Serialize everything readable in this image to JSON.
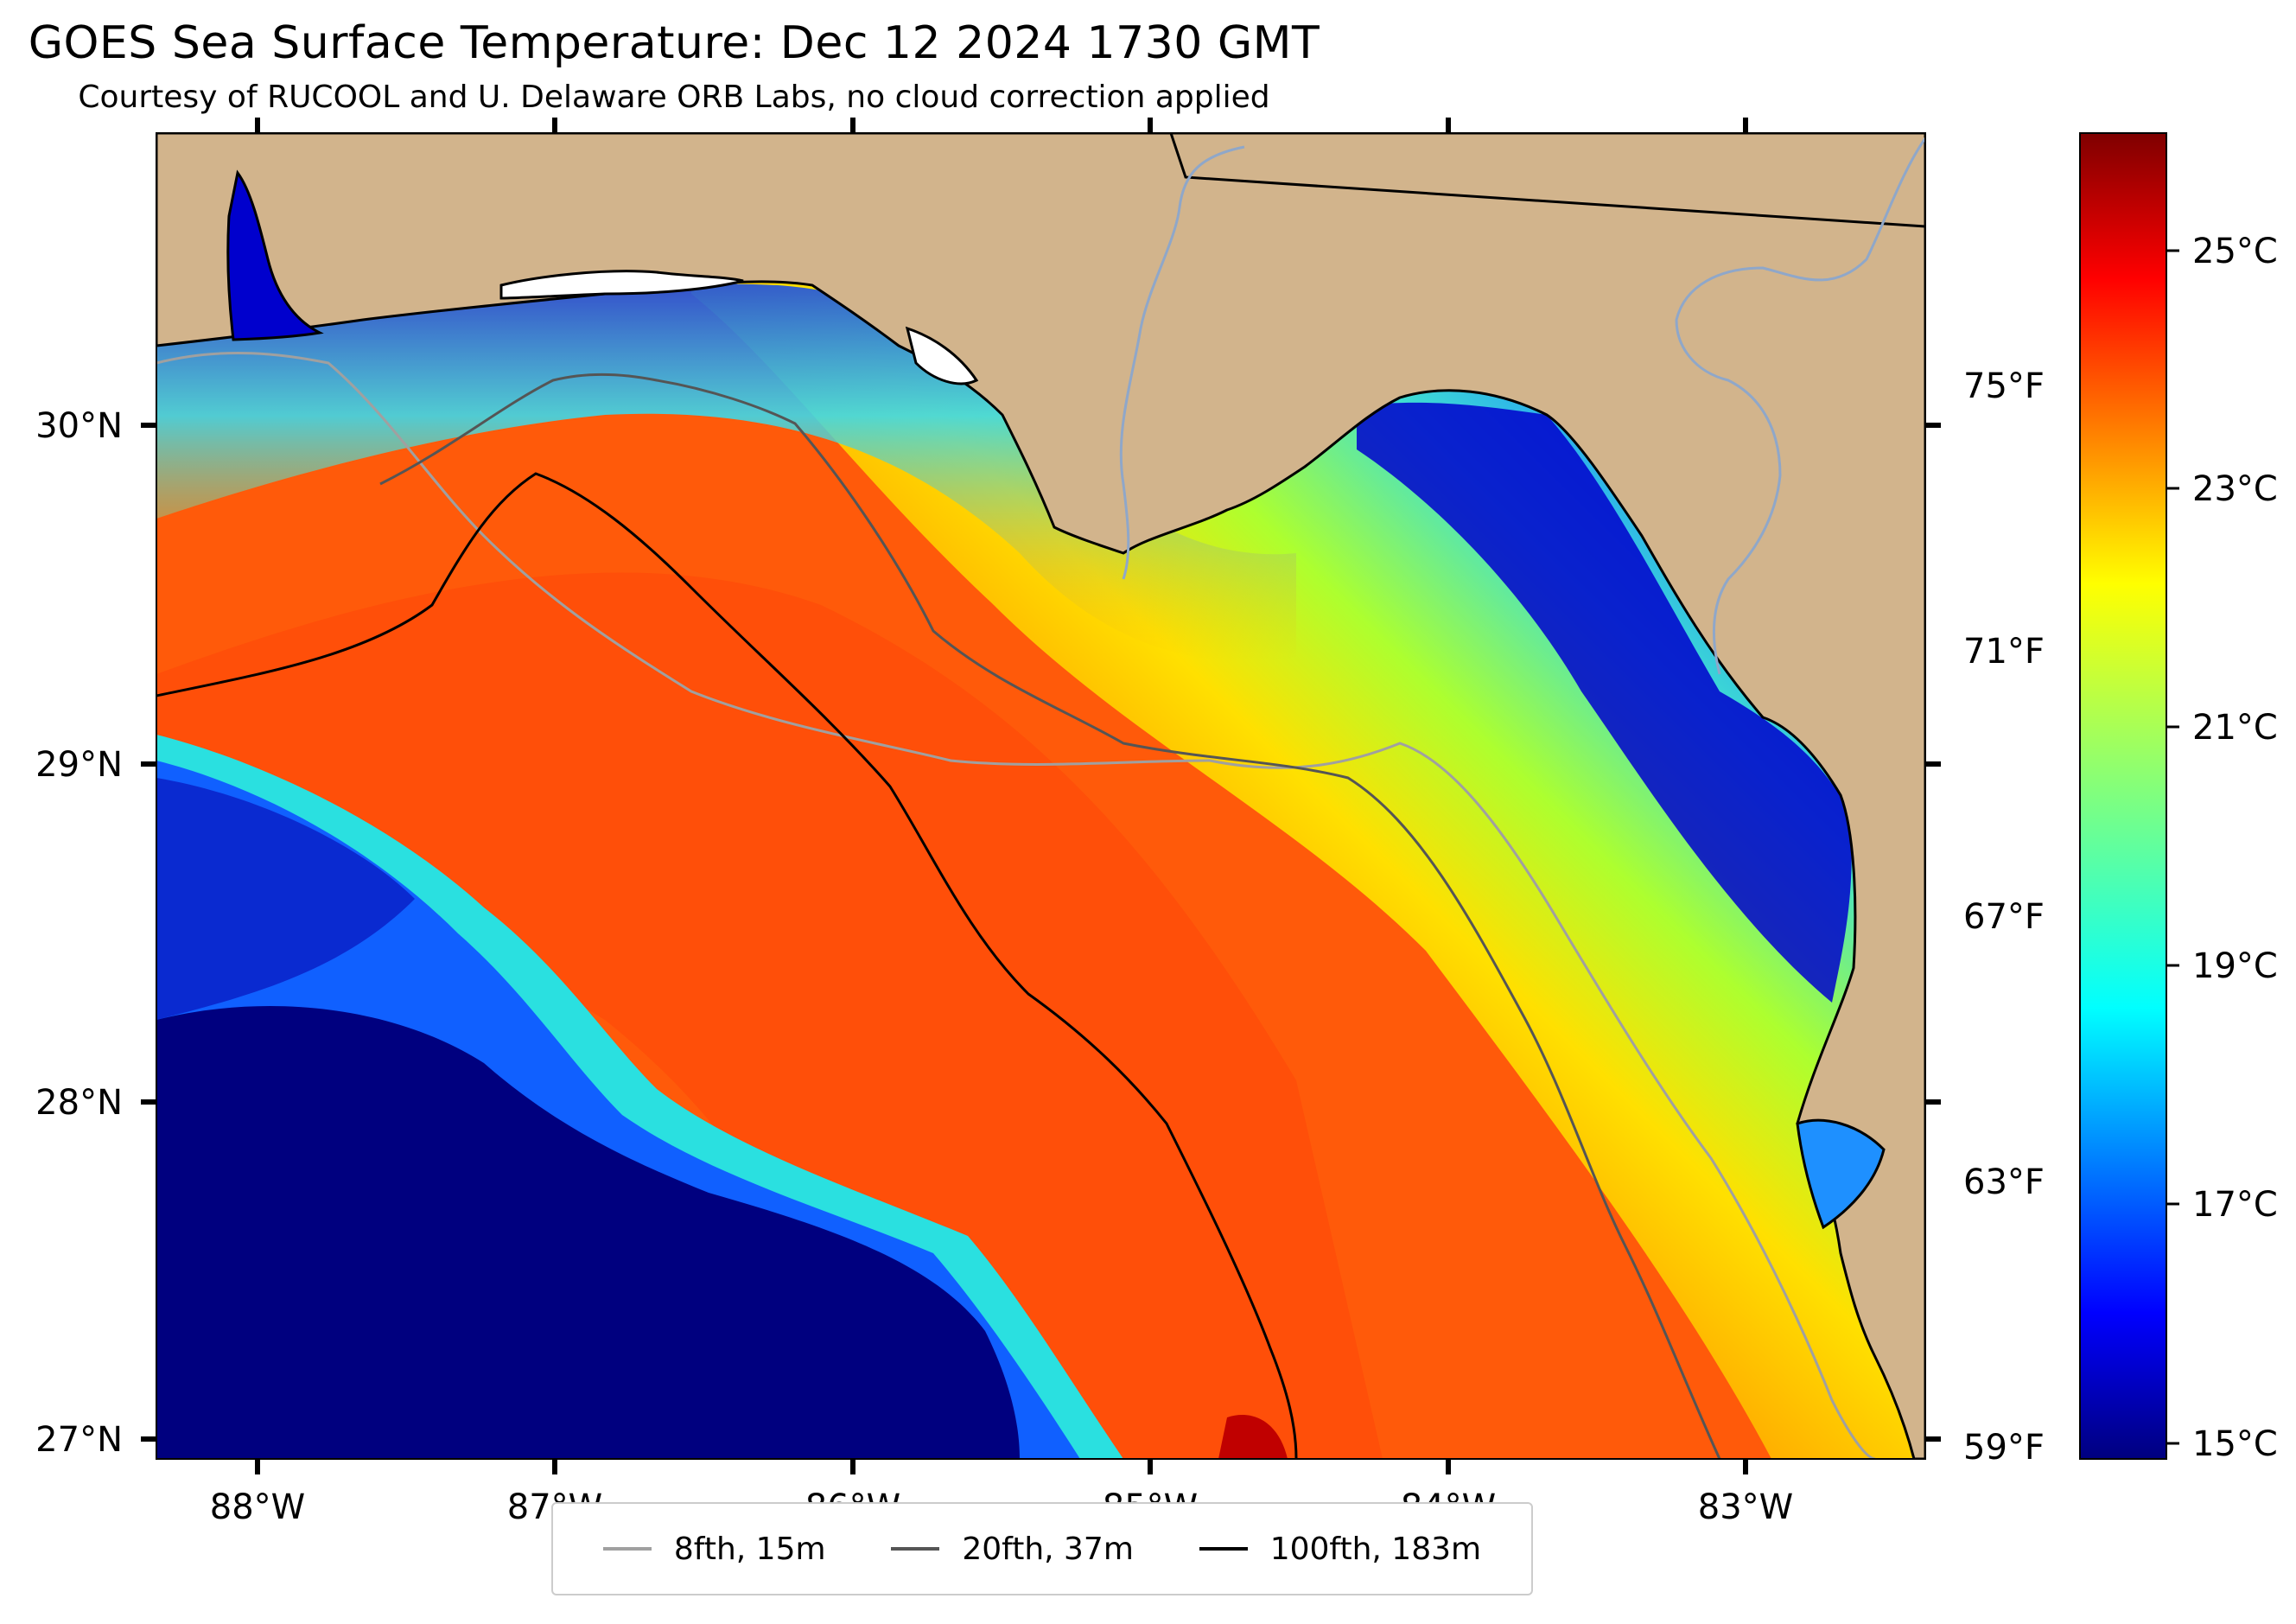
{
  "header": {
    "title": "GOES Sea Surface Temperature: Dec 12 2024 1730 GMT",
    "subtitle": "Courtesy of RUCOOL and U. Delaware ORB Labs, no cloud correction applied"
  },
  "map": {
    "lon_range": [
      -88.33,
      -82.4
    ],
    "lat_range": [
      26.93,
      30.85
    ],
    "lon_ticks": [
      "88°W",
      "87°W",
      "86°W",
      "85°W",
      "84°W",
      "83°W"
    ],
    "lat_ticks": [
      "30°N",
      "29°N",
      "28°N",
      "27°N"
    ],
    "land_color": "#D2B48C",
    "colormap": "jet"
  },
  "colorbar": {
    "celsius_labels": [
      "25°C",
      "23°C",
      "21°C",
      "19°C",
      "17°C",
      "15°C"
    ],
    "fahrenheit_labels": [
      "75°F",
      "71°F",
      "67°F",
      "63°F",
      "59°F"
    ],
    "range_c": [
      14.8,
      26.0
    ]
  },
  "legend": {
    "items": [
      {
        "label": "8fth, 15m",
        "color": "#a0a0a0"
      },
      {
        "label": "20fth, 37m",
        "color": "#555555"
      },
      {
        "label": "100fth, 183m",
        "color": "#000000"
      }
    ]
  }
}
